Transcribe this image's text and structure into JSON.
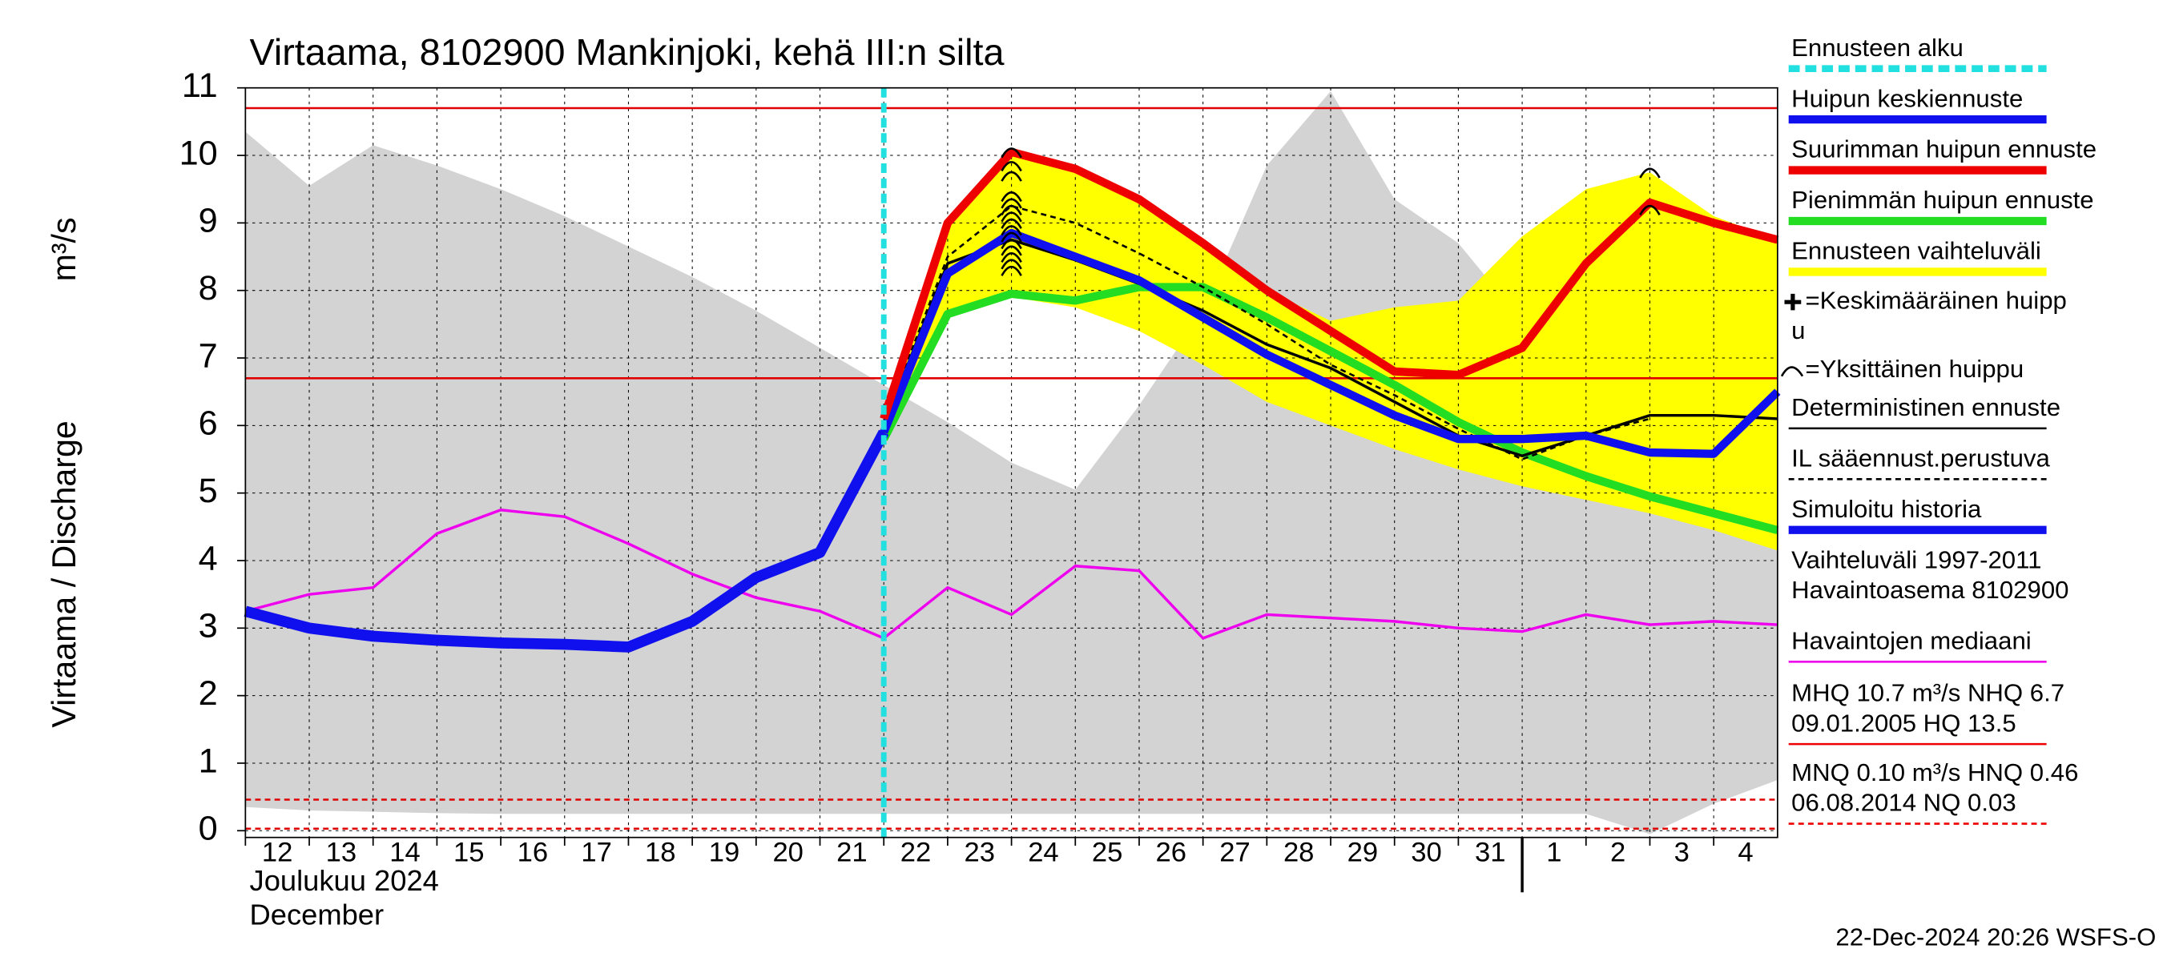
{
  "chart_data": {
    "type": "line",
    "title": "Virtaama, 8102900 Mankinjoki, kehä III:n silta",
    "y_label": "Virtaama / Discharge",
    "y_unit": "m³/s",
    "month_label": "Joulukuu  2024",
    "month_label_en": "December",
    "footer": "22-Dec-2024 20:26 WSFS-O",
    "xlim": [
      0,
      24
    ],
    "ylim": [
      -0.1,
      11
    ],
    "yticks": [
      0,
      1,
      2,
      3,
      4,
      5,
      6,
      7,
      8,
      9,
      10,
      11
    ],
    "grid": true,
    "day_labels": [
      "12",
      "13",
      "14",
      "15",
      "16",
      "17",
      "18",
      "19",
      "20",
      "21",
      "22",
      "23",
      "24",
      "25",
      "26",
      "27",
      "28",
      "29",
      "30",
      "31",
      "1",
      "2",
      "3",
      "4"
    ],
    "year_break": 20,
    "forecast_start": {
      "x": 10,
      "color": "#22e0e0"
    },
    "history_range": {
      "color": "#d3d3d3",
      "x": [
        0,
        1,
        2,
        3,
        4,
        5,
        6,
        7,
        8,
        9,
        10,
        11,
        12,
        13,
        14,
        15,
        16,
        17,
        18,
        19,
        20,
        21,
        22,
        23,
        24
      ],
      "low": [
        0.35,
        0.3,
        0.28,
        0.26,
        0.25,
        0.25,
        0.25,
        0.25,
        0.25,
        0.25,
        0.25,
        0.25,
        0.25,
        0.25,
        0.25,
        0.25,
        0.25,
        0.25,
        0.25,
        0.25,
        0.25,
        0.25,
        -0.05,
        0.4,
        0.75
      ],
      "high": [
        10.35,
        9.55,
        10.15,
        9.85,
        9.5,
        9.1,
        8.65,
        8.2,
        7.7,
        7.15,
        6.6,
        6.05,
        5.45,
        5.05,
        6.3,
        7.7,
        9.85,
        10.95,
        9.35,
        8.7,
        7.55,
        7.6,
        9.2,
        8.7,
        7.2
      ]
    },
    "band": {
      "color": "#ffff00",
      "x": [
        10,
        11,
        12,
        13,
        14,
        15,
        16,
        17,
        18,
        19,
        20,
        21,
        22,
        23,
        24
      ],
      "low": [
        5.8,
        7.6,
        7.9,
        7.75,
        7.4,
        6.9,
        6.35,
        6.0,
        5.65,
        5.35,
        5.1,
        4.9,
        4.7,
        4.45,
        4.15
      ],
      "high": [
        6.1,
        9.0,
        10.05,
        9.8,
        9.35,
        8.7,
        8.0,
        7.55,
        7.75,
        7.85,
        8.8,
        9.5,
        9.75,
        9.1,
        8.75
      ]
    },
    "ref_lines": [
      {
        "value": 10.7,
        "color": "#e00000",
        "dash": false
      },
      {
        "value": 6.7,
        "color": "#e00000",
        "dash": false
      },
      {
        "value": 0.46,
        "color": "#e00000",
        "dash": true
      },
      {
        "value": 0.03,
        "color": "#e00000",
        "dash": true
      }
    ],
    "series": [
      {
        "color": "#ee00ee",
        "width": 2,
        "dash": false,
        "x": [
          0,
          1,
          2,
          3,
          4,
          5,
          6,
          7,
          8,
          9,
          10,
          11,
          12,
          13,
          14,
          15,
          16,
          17,
          18,
          19,
          20,
          21,
          22,
          23,
          24
        ],
        "values": [
          3.25,
          3.5,
          3.6,
          4.4,
          4.75,
          4.65,
          4.25,
          3.8,
          3.45,
          3.25,
          2.85,
          3.6,
          3.2,
          3.92,
          3.85,
          2.85,
          3.2,
          3.15,
          3.1,
          3.0,
          2.95,
          3.2,
          3.05,
          3.1,
          3.05
        ]
      },
      {
        "color": "#22dd22",
        "width": 6,
        "dash": false,
        "x": [
          10,
          11,
          12,
          13,
          14,
          15,
          16,
          17,
          18,
          19,
          20,
          21,
          22,
          23,
          24
        ],
        "values": [
          5.8,
          7.65,
          7.95,
          7.85,
          8.05,
          8.05,
          7.6,
          7.1,
          6.6,
          6.05,
          5.6,
          5.25,
          4.95,
          4.7,
          4.45
        ]
      },
      {
        "color": "#000000",
        "width": 1.5,
        "dash": true,
        "x": [
          10,
          11,
          12,
          13,
          14,
          15,
          16,
          17,
          18,
          19,
          20,
          21,
          22
        ],
        "values": [
          6.05,
          8.5,
          9.25,
          9.0,
          8.55,
          8.05,
          7.5,
          6.9,
          6.45,
          5.95,
          5.5,
          5.85,
          6.1
        ]
      },
      {
        "color": "#000000",
        "width": 2,
        "dash": false,
        "x": [
          10,
          11,
          12,
          13,
          14,
          15,
          16,
          17,
          18,
          19,
          20,
          21,
          22,
          23,
          24
        ],
        "values": [
          6.0,
          8.4,
          8.75,
          8.45,
          8.1,
          7.7,
          7.2,
          6.85,
          6.35,
          5.85,
          5.55,
          5.85,
          6.15,
          6.15,
          6.1
        ]
      },
      {
        "color": "#1010ee",
        "width": 6,
        "dash": false,
        "x": [
          10,
          11,
          12,
          13,
          14,
          15,
          16,
          17,
          18,
          19,
          20,
          21,
          22,
          23,
          24
        ],
        "values": [
          5.9,
          8.25,
          8.85,
          8.5,
          8.15,
          7.6,
          7.05,
          6.6,
          6.15,
          5.8,
          5.8,
          5.85,
          5.6,
          5.58,
          6.5
        ]
      },
      {
        "color": "#ee0000",
        "width": 6,
        "dash": false,
        "x": [
          10,
          11,
          12,
          13,
          14,
          15,
          16,
          17,
          18,
          19,
          20,
          21,
          22,
          23,
          24
        ],
        "values": [
          6.1,
          9.0,
          10.05,
          9.8,
          9.35,
          8.7,
          8.0,
          7.4,
          6.8,
          6.75,
          7.15,
          8.4,
          9.3,
          9.0,
          8.75
        ]
      },
      {
        "color": "#1010ee",
        "width": 8,
        "dash": false,
        "x": [
          0,
          1,
          2,
          3,
          4,
          5,
          6,
          7,
          8,
          9,
          10
        ],
        "values": [
          3.25,
          3.0,
          2.88,
          2.82,
          2.78,
          2.76,
          2.72,
          3.1,
          3.75,
          4.12,
          5.9
        ]
      }
    ],
    "peaks": {
      "color": "#000000",
      "x": [
        12,
        12,
        12,
        12,
        12,
        12,
        12,
        12,
        12,
        12,
        12,
        12,
        12,
        12,
        12,
        22,
        22
      ],
      "values": [
        10.05,
        9.85,
        9.7,
        9.4,
        9.3,
        9.2,
        9.1,
        9.0,
        8.9,
        8.8,
        8.7,
        8.6,
        8.5,
        8.4,
        8.3,
        9.75,
        9.2
      ]
    },
    "legend": [
      {
        "text": [
          "Ennusteen alku"
        ],
        "color": "#22e0e0",
        "style": "dash"
      },
      {
        "text": [
          "Huipun keskiennuste"
        ],
        "color": "#1010ee",
        "style": "thick"
      },
      {
        "text": [
          "Suurimman huipun ennuste"
        ],
        "color": "#ee0000",
        "style": "thick"
      },
      {
        "text": [
          "Pienimmän huipun ennuste"
        ],
        "color": "#22dd22",
        "style": "thick"
      },
      {
        "text": [
          "Ennusteen vaihteluväli"
        ],
        "color": "#ffff00",
        "style": "thick"
      },
      {
        "text": [
          "=Keskimääräinen huipp",
          "u"
        ],
        "color": "#000000",
        "style": "plus"
      },
      {
        "text": [
          "=Yksittäinen huippu"
        ],
        "color": "#000000",
        "style": "arc"
      },
      {
        "text": [
          "Deterministinen ennuste"
        ],
        "color": "#000000",
        "style": "thin"
      },
      {
        "text": [
          "IL sääennust.perustuva"
        ],
        "color": "#000000",
        "style": "dotted"
      },
      {
        "text": [
          "Simuloitu historia"
        ],
        "color": "#1010ee",
        "style": "thick"
      },
      {
        "text": [
          "Vaihteluväli 1997-2011",
          " Havaintoasema 8102900"
        ],
        "color": "#d3d3d3",
        "style": "none"
      },
      {
        "text": [
          "Havaintojen mediaani"
        ],
        "color": "#ee00ee",
        "style": "thin"
      },
      {
        "text": [
          "MHQ 10.7 m³/s NHQ  6.7",
          "09.01.2005 HQ 13.5"
        ],
        "color": "#ee0000",
        "style": "thin"
      },
      {
        "text": [
          "MNQ 0.10 m³/s HNQ 0.46",
          "06.08.2014 NQ 0.03"
        ],
        "color": "#ee0000",
        "style": "dotted"
      }
    ]
  }
}
